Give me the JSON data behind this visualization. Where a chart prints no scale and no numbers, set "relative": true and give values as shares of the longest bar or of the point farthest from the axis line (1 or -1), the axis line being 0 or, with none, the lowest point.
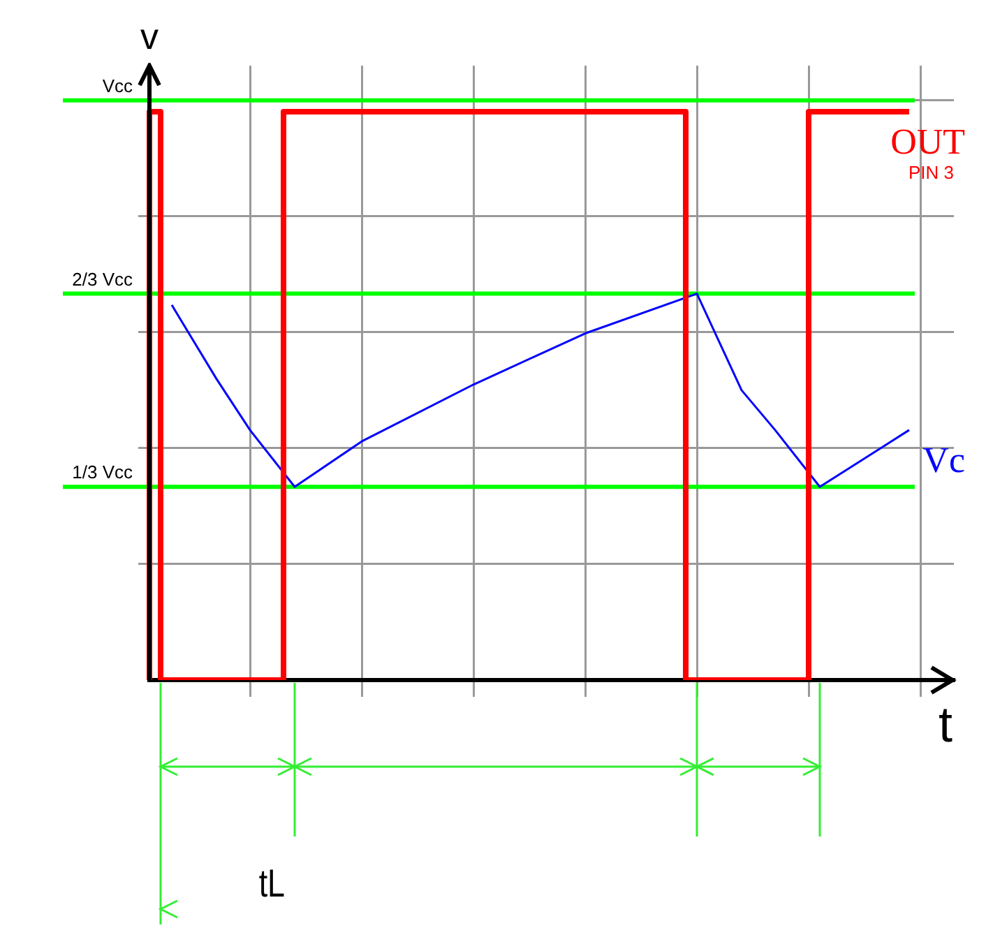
{
  "chart_data": {
    "type": "line",
    "xlabel": "t",
    "ylabel": "v",
    "categories": [
      null,
      null,
      null,
      null,
      null,
      null,
      null,
      null,
      null,
      null,
      null,
      null,
      null,
      null,
      null,
      null,
      null,
      null,
      null,
      null,
      null,
      null,
      null,
      null,
      null,
      null,
      null,
      null,
      null,
      null,
      null,
      null,
      null,
      null,
      null,
      null,
      null,
      null,
      null,
      null,
      null,
      null,
      null,
      null,
      null,
      null,
      null,
      null,
      null,
      null,
      null,
      null,
      null,
      null,
      null,
      null,
      null,
      null,
      null,
      null,
      null,
      null,
      null,
      null,
      null,
      null,
      null,
      null,
      null,
      null,
      null,
      null,
      null
    ],
    "relative": true,
    "grid": true,
    "legend": false,
    "marker": "none",
    "line_style": "solid",
    "series": [
      {
        "name": "OUT",
        "type": "step",
        "color": "#ff0000",
        "values": [
          0,
          1,
          0,
          0,
          0,
          0,
          0,
          0,
          0,
          0,
          0,
          0,
          0,
          1,
          1,
          1,
          1,
          1,
          1,
          1,
          1,
          1,
          1,
          1,
          1,
          1,
          1,
          1,
          1,
          1,
          1,
          1,
          1,
          1,
          1,
          1,
          1,
          1,
          1,
          1,
          1,
          1,
          1,
          1,
          1,
          1,
          1,
          1,
          1,
          0,
          0,
          0,
          0,
          0,
          0,
          0,
          0,
          0,
          0,
          0,
          1,
          1,
          1,
          1,
          1,
          1,
          1,
          1,
          1,
          null,
          null,
          null,
          null
        ]
      },
      {
        "name": "Vc",
        "color": "#0000ff",
        "values": [
          null,
          null,
          0.66,
          null,
          null,
          null,
          0.53,
          null,
          null,
          0.44,
          null,
          null,
          null,
          0.34,
          null,
          null,
          null,
          null,
          null,
          0.42,
          null,
          null,
          null,
          null,
          null,
          null,
          null,
          null,
          null,
          0.52,
          null,
          null,
          null,
          null,
          null,
          null,
          null,
          null,
          null,
          0.61,
          null,
          null,
          null,
          null,
          null,
          null,
          null,
          null,
          null,
          0.68,
          null,
          null,
          null,
          0.51,
          null,
          null,
          0.44,
          null,
          null,
          null,
          0.34,
          null,
          null,
          null,
          null,
          null,
          null,
          null,
          0.44,
          null,
          null,
          null,
          null
        ]
      }
    ],
    "ref_lines": [
      {
        "axis": "y",
        "value": 1.02,
        "label": "Vcc",
        "color": "#00ff00"
      },
      {
        "axis": "y",
        "value": 0.68,
        "label": "2/3 Vcc",
        "color": "#00ff00"
      },
      {
        "axis": "y",
        "value": 0.34,
        "label": "1/3 Vcc",
        "color": "#00ff00"
      }
    ],
    "annotations": [
      "PIN 3",
      "tL"
    ]
  }
}
